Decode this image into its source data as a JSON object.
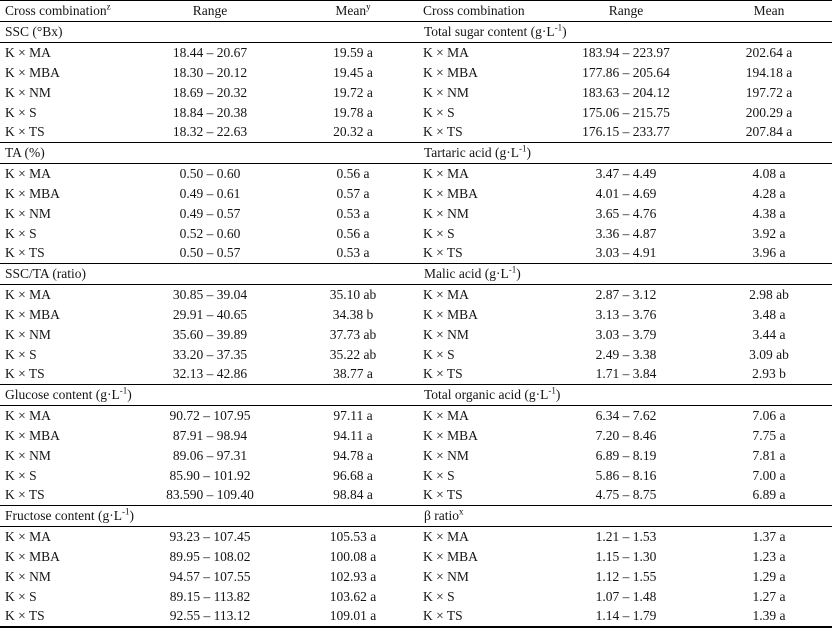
{
  "table": {
    "header": {
      "left": {
        "cross": "Cross combination",
        "cross_sup": "z",
        "range": "Range",
        "mean": "Mean",
        "mean_sup": "y"
      },
      "right": {
        "cross": "Cross combination",
        "range": "Range",
        "mean": "Mean"
      }
    },
    "sections": [
      {
        "left": {
          "title": "SSC (°Bx)"
        },
        "right": {
          "title": "Total sugar content (g·L",
          "sup": "-1",
          "post": ")"
        },
        "rows": [
          {
            "l_cross": "K × MA",
            "l_range": "18.44 – 20.67",
            "l_mean": "19.59 a",
            "r_cross": "K × MA",
            "r_range": "183.94 – 223.97",
            "r_mean": "202.64 a"
          },
          {
            "l_cross": "K × MBA",
            "l_range": "18.30 – 20.12",
            "l_mean": "19.45 a",
            "r_cross": "K × MBA",
            "r_range": "177.86 – 205.64",
            "r_mean": "194.18 a"
          },
          {
            "l_cross": "K × NM",
            "l_range": "18.69 – 20.32",
            "l_mean": "19.72 a",
            "r_cross": "K × NM",
            "r_range": "183.63 – 204.12",
            "r_mean": "197.72 a"
          },
          {
            "l_cross": "K × S",
            "l_range": "18.84 – 20.38",
            "l_mean": "19.78 a",
            "r_cross": "K × S",
            "r_range": "175.06 – 215.75",
            "r_mean": "200.29 a"
          },
          {
            "l_cross": "K × TS",
            "l_range": "18.32 – 22.63",
            "l_mean": "20.32 a",
            "r_cross": "K × TS",
            "r_range": "176.15 – 233.77",
            "r_mean": "207.84 a"
          }
        ]
      },
      {
        "left": {
          "title": "TA (%)"
        },
        "right": {
          "title": "Tartaric acid (g·L",
          "sup": "-1",
          "post": ")"
        },
        "rows": [
          {
            "l_cross": "K × MA",
            "l_range": "0.50 – 0.60",
            "l_mean": "0.56 a",
            "r_cross": "K × MA",
            "r_range": "3.47 – 4.49",
            "r_mean": "4.08 a"
          },
          {
            "l_cross": "K × MBA",
            "l_range": "0.49 – 0.61",
            "l_mean": "0.57 a",
            "r_cross": "K × MBA",
            "r_range": "4.01 – 4.69",
            "r_mean": "4.28 a"
          },
          {
            "l_cross": "K × NM",
            "l_range": "0.49 – 0.57",
            "l_mean": "0.53 a",
            "r_cross": "K × NM",
            "r_range": "3.65 – 4.76",
            "r_mean": "4.38 a"
          },
          {
            "l_cross": "K × S",
            "l_range": "0.52 – 0.60",
            "l_mean": "0.56 a",
            "r_cross": "K × S",
            "r_range": "3.36 – 4.87",
            "r_mean": "3.92 a"
          },
          {
            "l_cross": "K × TS",
            "l_range": "0.50 – 0.57",
            "l_mean": "0.53 a",
            "r_cross": "K × TS",
            "r_range": "3.03 – 4.91",
            "r_mean": "3.96 a"
          }
        ]
      },
      {
        "left": {
          "title": "SSC/TA (ratio)"
        },
        "right": {
          "title": "Malic acid (g·L",
          "sup": "-1",
          "post": ")"
        },
        "rows": [
          {
            "l_cross": "K × MA",
            "l_range": "30.85 – 39.04",
            "l_mean": "35.10 ab",
            "r_cross": "K × MA",
            "r_range": "2.87 – 3.12",
            "r_mean": "2.98 ab"
          },
          {
            "l_cross": "K × MBA",
            "l_range": "29.91 – 40.65",
            "l_mean": "34.38 b",
            "r_cross": "K × MBA",
            "r_range": "3.13 – 3.76",
            "r_mean": "3.48 a"
          },
          {
            "l_cross": "K × NM",
            "l_range": "35.60 – 39.89",
            "l_mean": "37.73 ab",
            "r_cross": "K × NM",
            "r_range": "3.03 – 3.79",
            "r_mean": "3.44 a"
          },
          {
            "l_cross": "K × S",
            "l_range": "33.20 – 37.35",
            "l_mean": "35.22 ab",
            "r_cross": "K × S",
            "r_range": "2.49 – 3.38",
            "r_mean": "3.09 ab"
          },
          {
            "l_cross": "K × TS",
            "l_range": "32.13 – 42.86",
            "l_mean": "38.77 a",
            "r_cross": "K × TS",
            "r_range": "1.71 – 3.84",
            "r_mean": "2.93 b"
          }
        ]
      },
      {
        "left": {
          "title": "Glucose content (g·L",
          "sup": "-1",
          "post": ")"
        },
        "right": {
          "title": "Total organic acid (g·L",
          "sup": "-1",
          "post": ")"
        },
        "rows": [
          {
            "l_cross": "K × MA",
            "l_range": "90.72 – 107.95",
            "l_mean": "97.11 a",
            "r_cross": "K × MA",
            "r_range": "6.34 – 7.62",
            "r_mean": "7.06 a"
          },
          {
            "l_cross": "K × MBA",
            "l_range": "87.91 – 98.94",
            "l_mean": "94.11 a",
            "r_cross": "K × MBA",
            "r_range": "7.20 – 8.46",
            "r_mean": "7.75 a"
          },
          {
            "l_cross": "K × NM",
            "l_range": "89.06 – 97.31",
            "l_mean": "94.78 a",
            "r_cross": "K × NM",
            "r_range": "6.89 – 8.19",
            "r_mean": "7.81 a"
          },
          {
            "l_cross": "K × S",
            "l_range": "85.90 – 101.92",
            "l_mean": "96.68 a",
            "r_cross": "K × S",
            "r_range": "5.86 – 8.16",
            "r_mean": "7.00 a"
          },
          {
            "l_cross": "K × TS",
            "l_range": "83.590 – 109.40",
            "l_mean": "98.84 a",
            "r_cross": "K × TS",
            "r_range": "4.75 – 8.75",
            "r_mean": "6.89 a"
          }
        ]
      },
      {
        "left": {
          "title": "Fructose content (g·L",
          "sup": "-1",
          "post": ")"
        },
        "right": {
          "title": "β ratio",
          "sup": "x"
        },
        "rows": [
          {
            "l_cross": "K × MA",
            "l_range": "93.23 – 107.45",
            "l_mean": "105.53 a",
            "r_cross": "K × MA",
            "r_range": "1.21 – 1.53",
            "r_mean": "1.37 a"
          },
          {
            "l_cross": "K × MBA",
            "l_range": "89.95 – 108.02",
            "l_mean": "100.08 a",
            "r_cross": "K × MBA",
            "r_range": "1.15 – 1.30",
            "r_mean": "1.23 a"
          },
          {
            "l_cross": "K × NM",
            "l_range": "94.57 – 107.55",
            "l_mean": "102.93 a",
            "r_cross": "K × NM",
            "r_range": "1.12 – 1.55",
            "r_mean": "1.29 a"
          },
          {
            "l_cross": "K × S",
            "l_range": "89.15 – 113.82",
            "l_mean": "103.62 a",
            "r_cross": "K × S",
            "r_range": "1.07 – 1.48",
            "r_mean": "1.27 a"
          },
          {
            "l_cross": "K × TS",
            "l_range": "92.55 – 113.12",
            "l_mean": "109.01 a",
            "r_cross": "K × TS",
            "r_range": "1.14 – 1.79",
            "r_mean": "1.39 a"
          }
        ]
      }
    ]
  }
}
